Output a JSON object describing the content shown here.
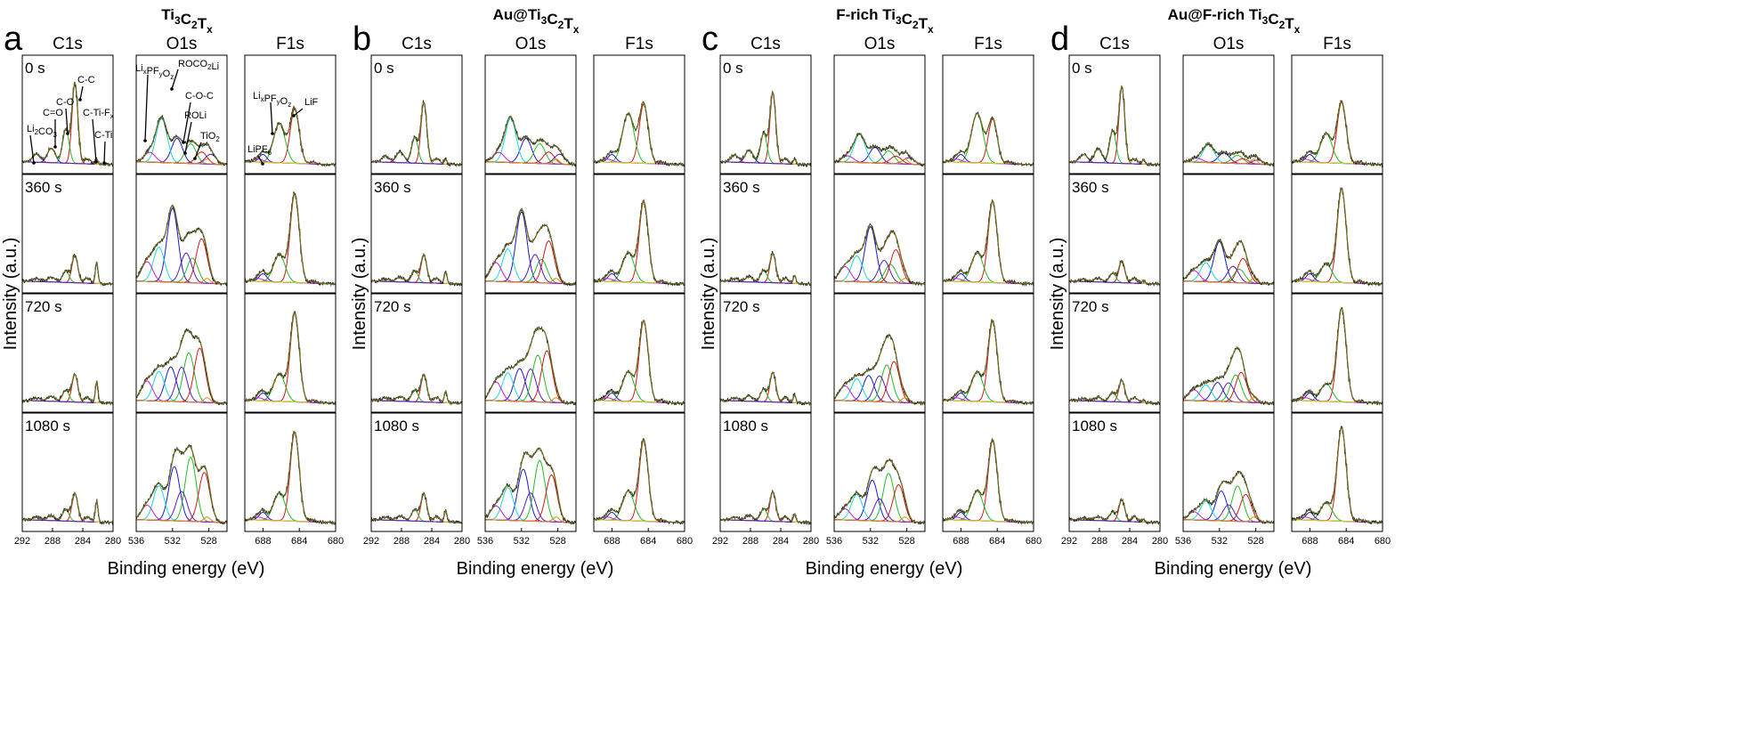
{
  "figure": {
    "y_axis_label": "Intensity (a.u.)",
    "x_axis_label": "Binding energy (eV)",
    "region_titles": [
      "C1s",
      "O1s",
      "F1s"
    ],
    "time_labels": [
      "0 s",
      "360 s",
      "720 s",
      "1080 s"
    ]
  },
  "panels": [
    {
      "letter": "a",
      "title": "Ti3C2Tx",
      "title_base": "Ti",
      "title_parts": [
        [
          "Ti",
          ""
        ],
        [
          "3",
          "sub"
        ],
        [
          "C",
          ""
        ],
        [
          "2",
          "sub"
        ],
        [
          "T",
          ""
        ],
        [
          "x",
          "sub"
        ]
      ]
    },
    {
      "letter": "b",
      "title": "Au@Ti3C2Tx",
      "title_parts": [
        [
          "Au@Ti",
          ""
        ],
        [
          "3",
          "sub"
        ],
        [
          "C",
          ""
        ],
        [
          "2",
          "sub"
        ],
        [
          "T",
          ""
        ],
        [
          "x",
          "sub"
        ]
      ]
    },
    {
      "letter": "c",
      "title": "F-rich Ti3C2Tx",
      "title_parts": [
        [
          "F-rich Ti",
          ""
        ],
        [
          "3",
          "sub"
        ],
        [
          "C",
          ""
        ],
        [
          "2",
          "sub"
        ],
        [
          "T",
          ""
        ],
        [
          "x",
          "sub"
        ]
      ]
    },
    {
      "letter": "d",
      "title": "Au@F-rich Ti3C2Tx",
      "title_parts": [
        [
          "Au@F-rich Ti",
          ""
        ],
        [
          "3",
          "sub"
        ],
        [
          "C",
          ""
        ],
        [
          "2",
          "sub"
        ],
        [
          "T",
          ""
        ],
        [
          "x",
          "sub"
        ]
      ]
    }
  ],
  "annotations": {
    "C1s": [
      "Li2CO3",
      "C=O",
      "C-O",
      "C-C",
      "C-Ti-Fx",
      "C-Ti"
    ],
    "O1s": [
      "LixPFyOz",
      "ROCO2Li",
      "C-O-C",
      "ROLi",
      "TiO2"
    ],
    "F1s": [
      "LixPFyOz",
      "LiF",
      "LiPF6"
    ]
  },
  "colors": {
    "envelope": "#6b6b1e",
    "raw": "#111111",
    "red": "#d01818",
    "green": "#22bb22",
    "blue": "#1a1acc",
    "cyan": "#18d8d8",
    "magenta": "#d018d0",
    "orange": "#e08a18",
    "yellow": "#d8d818",
    "purple": "#5a1ab4"
  },
  "chart_data": [
    {
      "type": "line",
      "panel": "a",
      "region": "C1s",
      "xlim": [
        292,
        280
      ],
      "xticks": [
        292,
        288,
        284,
        280
      ],
      "x_unit": "eV",
      "peaks": {
        "C-C": 284.8,
        "C-O": 286.3,
        "C=O": 288.0,
        "Li2CO3": 290.0,
        "C-Ti-Fx": 282.0,
        "C-Ti": 281.2
      },
      "relative_intensity": {
        "0 s": [
          0.85,
          0.35,
          0.25,
          0.12,
          0.08,
          0.06
        ],
        "360 s": [
          0.28,
          0.1,
          0.06,
          0.04,
          0.05,
          0.22
        ],
        "720 s": [
          0.28,
          0.1,
          0.06,
          0.04,
          0.05,
          0.22
        ],
        "1080 s": [
          0.25,
          0.1,
          0.06,
          0.05,
          0.05,
          0.22
        ]
      }
    },
    {
      "type": "line",
      "panel": "a",
      "region": "O1s",
      "xlim": [
        536,
        526
      ],
      "xticks": [
        536,
        532,
        528
      ],
      "x_unit": "eV",
      "peaks": {
        "LixPFyOz": 534.0,
        "ROCO2Li": 532.0,
        "C-O-C": 533.2,
        "ROLi": 531.0,
        "TiO2": 529.8
      }
    },
    {
      "type": "line",
      "panel": "a",
      "region": "F1s",
      "xlim": [
        690,
        680
      ],
      "xticks": [
        688,
        684,
        680
      ],
      "x_unit": "eV",
      "peaks": {
        "LixPFyOz": 686.8,
        "LiF": 684.8,
        "LiPF6": 688.0
      }
    },
    {
      "type": "line",
      "panel": "b",
      "region": "C1s",
      "xlim": [
        292,
        280
      ],
      "xticks": [
        292,
        288,
        284,
        280
      ],
      "x_unit": "eV"
    },
    {
      "type": "line",
      "panel": "b",
      "region": "O1s",
      "xlim": [
        536,
        526
      ],
      "xticks": [
        536,
        532,
        528
      ],
      "x_unit": "eV"
    },
    {
      "type": "line",
      "panel": "b",
      "region": "F1s",
      "xlim": [
        690,
        680
      ],
      "xticks": [
        688,
        684,
        680
      ],
      "x_unit": "eV"
    },
    {
      "type": "line",
      "panel": "c",
      "region": "C1s",
      "xlim": [
        292,
        280
      ],
      "xticks": [
        292,
        288,
        284,
        280
      ],
      "x_unit": "eV"
    },
    {
      "type": "line",
      "panel": "c",
      "region": "O1s",
      "xlim": [
        536,
        526
      ],
      "xticks": [
        536,
        532,
        528
      ],
      "x_unit": "eV"
    },
    {
      "type": "line",
      "panel": "c",
      "region": "F1s",
      "xlim": [
        690,
        680
      ],
      "xticks": [
        688,
        684,
        680
      ],
      "x_unit": "eV"
    },
    {
      "type": "line",
      "panel": "d",
      "region": "C1s",
      "xlim": [
        292,
        280
      ],
      "xticks": [
        292,
        288,
        284,
        280
      ],
      "x_unit": "eV"
    },
    {
      "type": "line",
      "panel": "d",
      "region": "O1s",
      "xlim": [
        536,
        526
      ],
      "xticks": [
        536,
        532,
        528
      ],
      "x_unit": "eV"
    },
    {
      "type": "line",
      "panel": "d",
      "region": "F1s",
      "xlim": [
        690,
        680
      ],
      "xticks": [
        688,
        684,
        680
      ],
      "x_unit": "eV"
    }
  ]
}
